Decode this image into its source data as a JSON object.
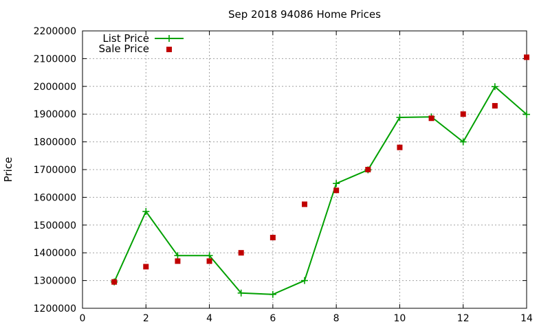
{
  "chart_data": {
    "type": "line",
    "title": "Sep 2018 94086 Home Prices",
    "xlabel": "",
    "ylabel": "Price",
    "xlim": [
      0,
      14
    ],
    "ylim": [
      1200000,
      2200000
    ],
    "xticks": [
      0,
      2,
      4,
      6,
      8,
      10,
      12,
      14
    ],
    "yticks": [
      1200000,
      1300000,
      1400000,
      1500000,
      1600000,
      1700000,
      1800000,
      1900000,
      2000000,
      2100000,
      2200000
    ],
    "grid": true,
    "legend_position": "top-left",
    "series": [
      {
        "name": "List Price",
        "style": "line-with-plus-markers",
        "color": "#00a000",
        "x": [
          1,
          2,
          3,
          4,
          5,
          6,
          7,
          8,
          9,
          10,
          11,
          12,
          13,
          14
        ],
        "y": [
          1295000,
          1549000,
          1390000,
          1390000,
          1255000,
          1250000,
          1300000,
          1650000,
          1699000,
          1888000,
          1890000,
          1800000,
          1999000,
          1899000
        ]
      },
      {
        "name": "Sale Price",
        "style": "square-markers",
        "color": "#c00000",
        "x": [
          1,
          2,
          3,
          4,
          5,
          6,
          7,
          8,
          9,
          10,
          11,
          12,
          13,
          14
        ],
        "y": [
          1295000,
          1350000,
          1370000,
          1370000,
          1400000,
          1455000,
          1575000,
          1625000,
          1700000,
          1780000,
          1885000,
          1900000,
          1930000,
          2105000
        ]
      }
    ]
  }
}
